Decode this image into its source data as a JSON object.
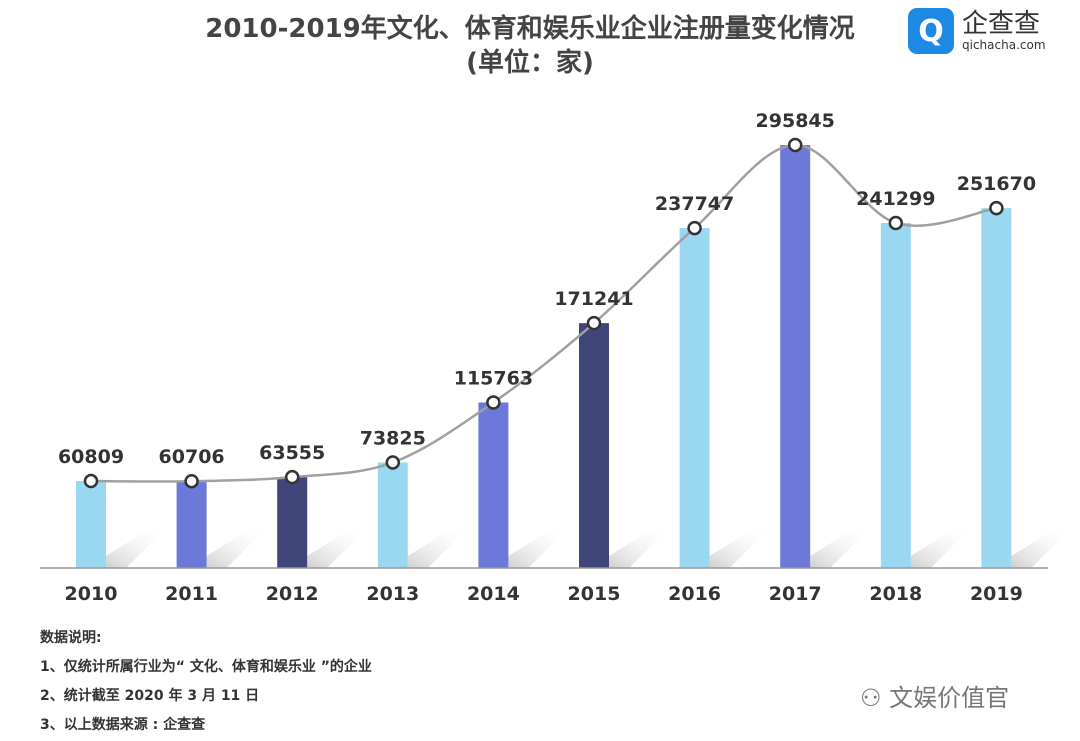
{
  "chart_data": {
    "type": "bar",
    "title": "2010-2019年文化、体育和娱乐业企业注册量变化情况",
    "subtitle": "(单位：家)",
    "categories": [
      "2010",
      "2011",
      "2012",
      "2013",
      "2014",
      "2015",
      "2016",
      "2017",
      "2018",
      "2019"
    ],
    "values": [
      60809,
      60706,
      63555,
      73825,
      115763,
      171241,
      237747,
      295845,
      241299,
      251670
    ],
    "bar_colors": [
      "#9ad8f2",
      "#6d79d9",
      "#40467a",
      "#9ad8f2",
      "#6d79d9",
      "#40467a",
      "#9ad8f2",
      "#6d79d9",
      "#9ad8f2",
      "#9ad8f2"
    ],
    "line_color": "#a0a0a0",
    "ylim": [
      0,
      300000
    ],
    "xlabel": "",
    "ylabel": "",
    "grid": false,
    "legend": "none"
  },
  "logo": {
    "name": "企查查",
    "url_text": "qichacha.com"
  },
  "notes": [
    "数据说明:",
    "1、仅统计所属行业为“ 文化、体育和娱乐业 ”的企业",
    "2、统计截至 2020 年 3 月 11 日",
    "3、以上数据来源 : 企查查"
  ],
  "watermark": "文娱价值官"
}
